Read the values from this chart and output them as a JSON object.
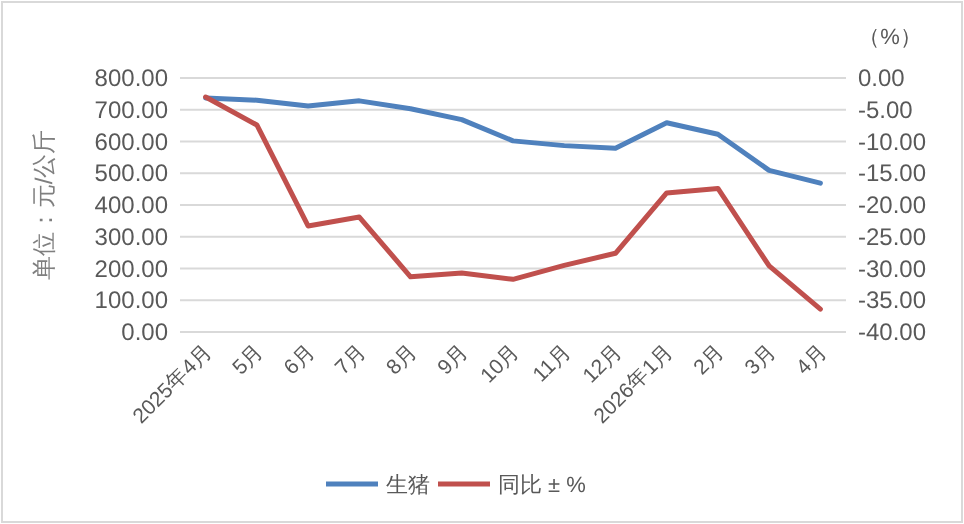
{
  "chart_data": {
    "type": "line",
    "ylabel": "单位：元/公斤",
    "y2label": "（%）",
    "categories": [
      "2025年4月",
      "5月",
      "6月",
      "7月",
      "8月",
      "9月",
      "10月",
      "11月",
      "12月",
      "2026年1月",
      "2月",
      "3月",
      "4月"
    ],
    "series": [
      {
        "name": "生猪",
        "color": "#4f81bd",
        "values": [
          737,
          730,
          712,
          728,
          703,
          669,
          602,
          587,
          579,
          659,
          623,
          509,
          469
        ]
      },
      {
        "name": "同比 ± %",
        "color": "#c0504d",
        "axis": "y2",
        "values": [
          -3.0,
          -7.4,
          -23.3,
          -21.9,
          -31.3,
          -30.7,
          -31.7,
          -29.5,
          -27.6,
          -18.1,
          -17.4,
          -29.6,
          -36.4
        ]
      }
    ],
    "ylim": [
      0,
      800
    ],
    "yticks": [
      {
        "value": 0,
        "label": "0.00"
      },
      {
        "value": 100,
        "label": "100.00"
      },
      {
        "value": 200,
        "label": "200.00"
      },
      {
        "value": 300,
        "label": "300.00"
      },
      {
        "value": 400,
        "label": "400.00"
      },
      {
        "value": 500,
        "label": "500.00"
      },
      {
        "value": 600,
        "label": "600.00"
      },
      {
        "value": 700,
        "label": "700.00"
      },
      {
        "value": 800,
        "label": "800.00"
      }
    ],
    "y2lim": [
      -40,
      0
    ],
    "y2ticks": [
      {
        "value": -40,
        "label": "-40.00"
      },
      {
        "value": -35,
        "label": "-35.00"
      },
      {
        "value": -30,
        "label": "-30.00"
      },
      {
        "value": -25,
        "label": "-25.00"
      },
      {
        "value": -20,
        "label": "-20.00"
      },
      {
        "value": -15,
        "label": "-15.00"
      },
      {
        "value": -10,
        "label": "-10.00"
      },
      {
        "value": -5,
        "label": "-5.00"
      },
      {
        "value": 0,
        "label": "0.00"
      }
    ],
    "grid": "y",
    "legend": "bottom",
    "marker": "none",
    "line_style": "solid"
  }
}
